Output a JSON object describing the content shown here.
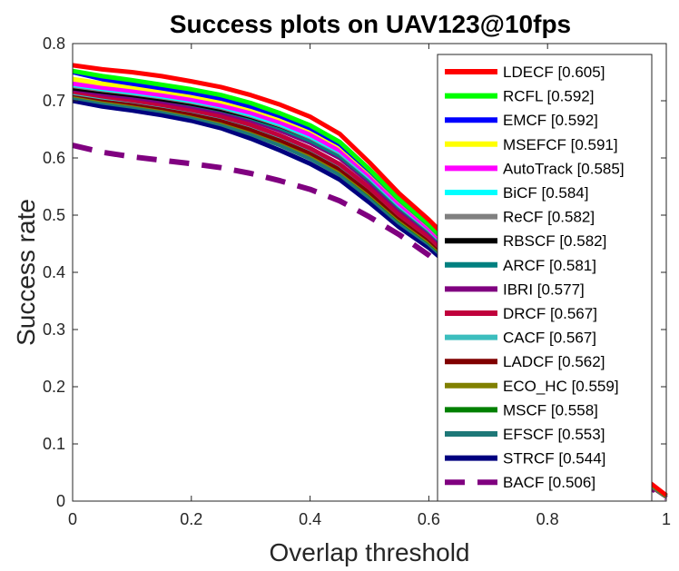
{
  "chart_data": {
    "type": "line",
    "title": "Success plots on UAV123@10fps",
    "xlabel": "Overlap threshold",
    "ylabel": "Success rate",
    "xlim": [
      0,
      1
    ],
    "ylim": [
      0,
      0.8
    ],
    "xticks": [
      0,
      0.2,
      0.4,
      0.6,
      0.8,
      1
    ],
    "xtick_labels": [
      "0",
      "0.2",
      "0.4",
      "0.6",
      "0.8",
      "1"
    ],
    "yticks": [
      0,
      0.1,
      0.2,
      0.3,
      0.4,
      0.5,
      0.6,
      0.7,
      0.8
    ],
    "ytick_labels": [
      "0",
      "0.1",
      "0.2",
      "0.3",
      "0.4",
      "0.5",
      "0.6",
      "0.7",
      "0.8"
    ],
    "legend_position": "right",
    "x": [
      0,
      0.05,
      0.1,
      0.15,
      0.2,
      0.25,
      0.3,
      0.35,
      0.4,
      0.45,
      0.5,
      0.55,
      0.6,
      0.65,
      0.7,
      0.75,
      0.8,
      0.85,
      0.9,
      0.95,
      1
    ],
    "series": [
      {
        "name": "LDECF [0.605]",
        "color": "#ff0000",
        "dash": false,
        "values": [
          0.762,
          0.755,
          0.75,
          0.743,
          0.734,
          0.724,
          0.71,
          0.693,
          0.672,
          0.642,
          0.592,
          0.538,
          0.492,
          0.44,
          0.38,
          0.318,
          0.25,
          0.18,
          0.11,
          0.05,
          0.01
        ]
      },
      {
        "name": "RCFL [0.592]",
        "color": "#00ff00",
        "dash": false,
        "values": [
          0.752,
          0.743,
          0.736,
          0.728,
          0.72,
          0.71,
          0.696,
          0.678,
          0.657,
          0.628,
          0.58,
          0.528,
          0.484,
          0.432,
          0.373,
          0.312,
          0.245,
          0.176,
          0.107,
          0.048,
          0.009
        ]
      },
      {
        "name": "EMCF [0.592]",
        "color": "#0000ff",
        "dash": false,
        "values": [
          0.75,
          0.738,
          0.73,
          0.722,
          0.714,
          0.704,
          0.69,
          0.673,
          0.652,
          0.624,
          0.578,
          0.527,
          0.483,
          0.431,
          0.372,
          0.311,
          0.244,
          0.175,
          0.106,
          0.047,
          0.009
        ]
      },
      {
        "name": "MSEFCF [0.591]",
        "color": "#ffff00",
        "dash": false,
        "values": [
          0.738,
          0.73,
          0.724,
          0.717,
          0.709,
          0.699,
          0.686,
          0.669,
          0.649,
          0.621,
          0.576,
          0.526,
          0.482,
          0.43,
          0.371,
          0.31,
          0.243,
          0.175,
          0.106,
          0.047,
          0.009
        ]
      },
      {
        "name": "AutoTrack [0.585]",
        "color": "#ff00ff",
        "dash": false,
        "values": [
          0.73,
          0.723,
          0.717,
          0.71,
          0.702,
          0.692,
          0.679,
          0.662,
          0.641,
          0.613,
          0.569,
          0.52,
          0.477,
          0.426,
          0.368,
          0.307,
          0.241,
          0.173,
          0.105,
          0.046,
          0.009
        ]
      },
      {
        "name": "BiCF [0.584]",
        "color": "#00ffff",
        "dash": false,
        "values": [
          0.728,
          0.721,
          0.715,
          0.708,
          0.7,
          0.69,
          0.676,
          0.659,
          0.638,
          0.611,
          0.567,
          0.518,
          0.476,
          0.425,
          0.367,
          0.306,
          0.24,
          0.172,
          0.104,
          0.046,
          0.009
        ]
      },
      {
        "name": "ReCF [0.582]",
        "color": "#808080",
        "dash": false,
        "values": [
          0.726,
          0.719,
          0.713,
          0.706,
          0.698,
          0.688,
          0.674,
          0.657,
          0.636,
          0.609,
          0.566,
          0.517,
          0.475,
          0.424,
          0.366,
          0.305,
          0.24,
          0.172,
          0.104,
          0.046,
          0.009
        ]
      },
      {
        "name": "RBSCF [0.582]",
        "color": "#000000",
        "dash": false,
        "values": [
          0.722,
          0.716,
          0.71,
          0.703,
          0.695,
          0.685,
          0.672,
          0.656,
          0.636,
          0.61,
          0.567,
          0.518,
          0.476,
          0.425,
          0.366,
          0.305,
          0.24,
          0.172,
          0.104,
          0.046,
          0.009
        ]
      },
      {
        "name": "ARCF [0.581]",
        "color": "#008080",
        "dash": false,
        "values": [
          0.724,
          0.716,
          0.71,
          0.703,
          0.694,
          0.684,
          0.67,
          0.652,
          0.631,
          0.604,
          0.562,
          0.514,
          0.473,
          0.423,
          0.365,
          0.305,
          0.24,
          0.172,
          0.104,
          0.046,
          0.009
        ]
      },
      {
        "name": "IBRI [0.577]",
        "color": "#800080",
        "dash": false,
        "values": [
          0.72,
          0.712,
          0.706,
          0.699,
          0.69,
          0.68,
          0.666,
          0.648,
          0.627,
          0.6,
          0.558,
          0.51,
          0.47,
          0.42,
          0.363,
          0.303,
          0.238,
          0.171,
          0.103,
          0.045,
          0.009
        ]
      },
      {
        "name": "DRCF [0.567]",
        "color": "#c0003c",
        "dash": false,
        "values": [
          0.716,
          0.708,
          0.701,
          0.693,
          0.684,
          0.673,
          0.658,
          0.639,
          0.617,
          0.589,
          0.548,
          0.501,
          0.462,
          0.413,
          0.357,
          0.298,
          0.234,
          0.168,
          0.101,
          0.044,
          0.008
        ]
      },
      {
        "name": "CACF [0.567]",
        "color": "#3cbebe",
        "dash": false,
        "values": [
          0.714,
          0.706,
          0.7,
          0.692,
          0.683,
          0.672,
          0.657,
          0.638,
          0.616,
          0.588,
          0.548,
          0.501,
          0.462,
          0.413,
          0.357,
          0.298,
          0.234,
          0.168,
          0.101,
          0.044,
          0.008
        ]
      },
      {
        "name": "LADCF [0.562]",
        "color": "#800000",
        "dash": false,
        "values": [
          0.712,
          0.703,
          0.696,
          0.688,
          0.678,
          0.666,
          0.65,
          0.631,
          0.609,
          0.581,
          0.541,
          0.496,
          0.458,
          0.41,
          0.355,
          0.296,
          0.233,
          0.167,
          0.1,
          0.044,
          0.008
        ]
      },
      {
        "name": "ECO_HC [0.559]",
        "color": "#808000",
        "dash": false,
        "values": [
          0.71,
          0.701,
          0.694,
          0.686,
          0.676,
          0.664,
          0.648,
          0.629,
          0.606,
          0.578,
          0.538,
          0.493,
          0.455,
          0.408,
          0.353,
          0.295,
          0.232,
          0.166,
          0.1,
          0.044,
          0.008
        ]
      },
      {
        "name": "MSCF [0.558]",
        "color": "#008000",
        "dash": false,
        "values": [
          0.716,
          0.707,
          0.699,
          0.69,
          0.68,
          0.667,
          0.65,
          0.63,
          0.607,
          0.578,
          0.537,
          0.492,
          0.454,
          0.407,
          0.352,
          0.294,
          0.231,
          0.166,
          0.1,
          0.043,
          0.008
        ]
      },
      {
        "name": "EFSCF [0.553]",
        "color": "#1e7878",
        "dash": false,
        "values": [
          0.706,
          0.697,
          0.69,
          0.682,
          0.672,
          0.659,
          0.642,
          0.622,
          0.599,
          0.571,
          0.531,
          0.487,
          0.45,
          0.404,
          0.35,
          0.292,
          0.23,
          0.165,
          0.099,
          0.043,
          0.008
        ]
      },
      {
        "name": "STRCF [0.544]",
        "color": "#00007f",
        "dash": false,
        "values": [
          0.7,
          0.69,
          0.683,
          0.675,
          0.665,
          0.652,
          0.634,
          0.613,
          0.59,
          0.562,
          0.522,
          0.479,
          0.443,
          0.398,
          0.345,
          0.288,
          0.227,
          0.163,
          0.098,
          0.043,
          0.008
        ]
      },
      {
        "name": "BACF [0.506]",
        "color": "#800080",
        "dash": true,
        "values": [
          0.622,
          0.61,
          0.602,
          0.596,
          0.59,
          0.583,
          0.573,
          0.56,
          0.545,
          0.525,
          0.497,
          0.466,
          0.43,
          0.388,
          0.34,
          0.285,
          0.223,
          0.16,
          0.095,
          0.04,
          0.005
        ]
      }
    ]
  }
}
